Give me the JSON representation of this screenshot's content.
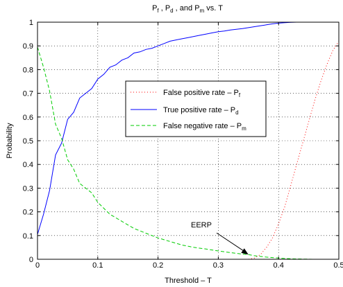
{
  "chart_data": {
    "type": "line",
    "title": "P_f , P_d , and P_m vs. T",
    "title_parts": {
      "p1": "P",
      "s1": "f",
      "sep1": " , ",
      "p2": "P",
      "s2": "d",
      "sep2": " , and ",
      "p3": "P",
      "s3": "m",
      "tail": " vs. T"
    },
    "xlabel": "Threshold – T",
    "ylabel": "Probability",
    "xlim": [
      0,
      0.5
    ],
    "ylim": [
      0,
      1
    ],
    "xticks": [
      0,
      0.1,
      0.2,
      0.3,
      0.4,
      0.5
    ],
    "xtick_labels": [
      "0",
      "0.1",
      "0.2",
      "0.3",
      "0.4",
      "0.5"
    ],
    "yticks": [
      0,
      0.1,
      0.2,
      0.3,
      0.4,
      0.5,
      0.6,
      0.7,
      0.8,
      0.9,
      1
    ],
    "ytick_labels": [
      "0",
      "0.1",
      "0.2",
      "0.3",
      "0.4",
      "0.5",
      "0.6",
      "0.7",
      "0.8",
      "0.9",
      "1"
    ],
    "grid": true,
    "legend_position": "upper-right-inside",
    "series": [
      {
        "name": "False positive rate – P_f",
        "legend_main": "False positive rate – P",
        "legend_sub": "f",
        "color": "#ff0000",
        "style": "dotted",
        "x": [
          0,
          0.35,
          0.36,
          0.37,
          0.38,
          0.39,
          0.4,
          0.41,
          0.42,
          0.43,
          0.44,
          0.45,
          0.46,
          0.47,
          0.48,
          0.49,
          0.5
        ],
        "y": [
          0,
          0,
          0.005,
          0.02,
          0.05,
          0.09,
          0.15,
          0.22,
          0.31,
          0.4,
          0.49,
          0.58,
          0.67,
          0.75,
          0.82,
          0.88,
          0.92
        ]
      },
      {
        "name": "True positive rate – P_d",
        "legend_main": "True positive rate – P",
        "legend_sub": "d",
        "color": "#0000ff",
        "style": "solid",
        "x": [
          0,
          0.01,
          0.02,
          0.03,
          0.04,
          0.05,
          0.06,
          0.07,
          0.08,
          0.09,
          0.1,
          0.11,
          0.12,
          0.13,
          0.14,
          0.15,
          0.16,
          0.17,
          0.18,
          0.19,
          0.2,
          0.21,
          0.22,
          0.23,
          0.24,
          0.25,
          0.26,
          0.27,
          0.28,
          0.29,
          0.3,
          0.31,
          0.32,
          0.33,
          0.34,
          0.35,
          0.36,
          0.37,
          0.38,
          0.39,
          0.4,
          0.41,
          0.42,
          0.43,
          0.44,
          0.45,
          0.46,
          0.47,
          0.48,
          0.49,
          0.5
        ],
        "y": [
          0.105,
          0.19,
          0.29,
          0.44,
          0.49,
          0.59,
          0.62,
          0.68,
          0.7,
          0.72,
          0.76,
          0.78,
          0.81,
          0.82,
          0.84,
          0.85,
          0.87,
          0.875,
          0.885,
          0.89,
          0.9,
          0.91,
          0.92,
          0.925,
          0.93,
          0.935,
          0.94,
          0.945,
          0.95,
          0.955,
          0.96,
          0.963,
          0.967,
          0.97,
          0.973,
          0.977,
          0.981,
          0.985,
          0.989,
          0.993,
          0.996,
          0.998,
          0.999,
          1,
          1,
          1,
          1,
          1,
          1,
          1,
          1
        ]
      },
      {
        "name": "False negative rate – P_m",
        "legend_main": "False negative rate – P",
        "legend_sub": "m",
        "color": "#00cc00",
        "style": "dashed",
        "x": [
          0,
          0.01,
          0.02,
          0.03,
          0.04,
          0.05,
          0.06,
          0.07,
          0.08,
          0.09,
          0.1,
          0.12,
          0.14,
          0.16,
          0.18,
          0.2,
          0.22,
          0.24,
          0.26,
          0.28,
          0.3,
          0.32,
          0.34,
          0.35,
          0.36,
          0.38,
          0.4,
          0.42,
          0.44,
          0.46,
          0.48,
          0.5
        ],
        "y": [
          0.895,
          0.81,
          0.71,
          0.57,
          0.51,
          0.42,
          0.38,
          0.32,
          0.3,
          0.28,
          0.24,
          0.19,
          0.16,
          0.13,
          0.11,
          0.09,
          0.075,
          0.06,
          0.05,
          0.043,
          0.035,
          0.028,
          0.022,
          0.02,
          0.015,
          0.009,
          0.005,
          0.002,
          0.001,
          0,
          0,
          0
        ]
      }
    ],
    "annotation": {
      "text": "EERP",
      "points_to": {
        "x": 0.35,
        "y": 0.02
      }
    }
  }
}
